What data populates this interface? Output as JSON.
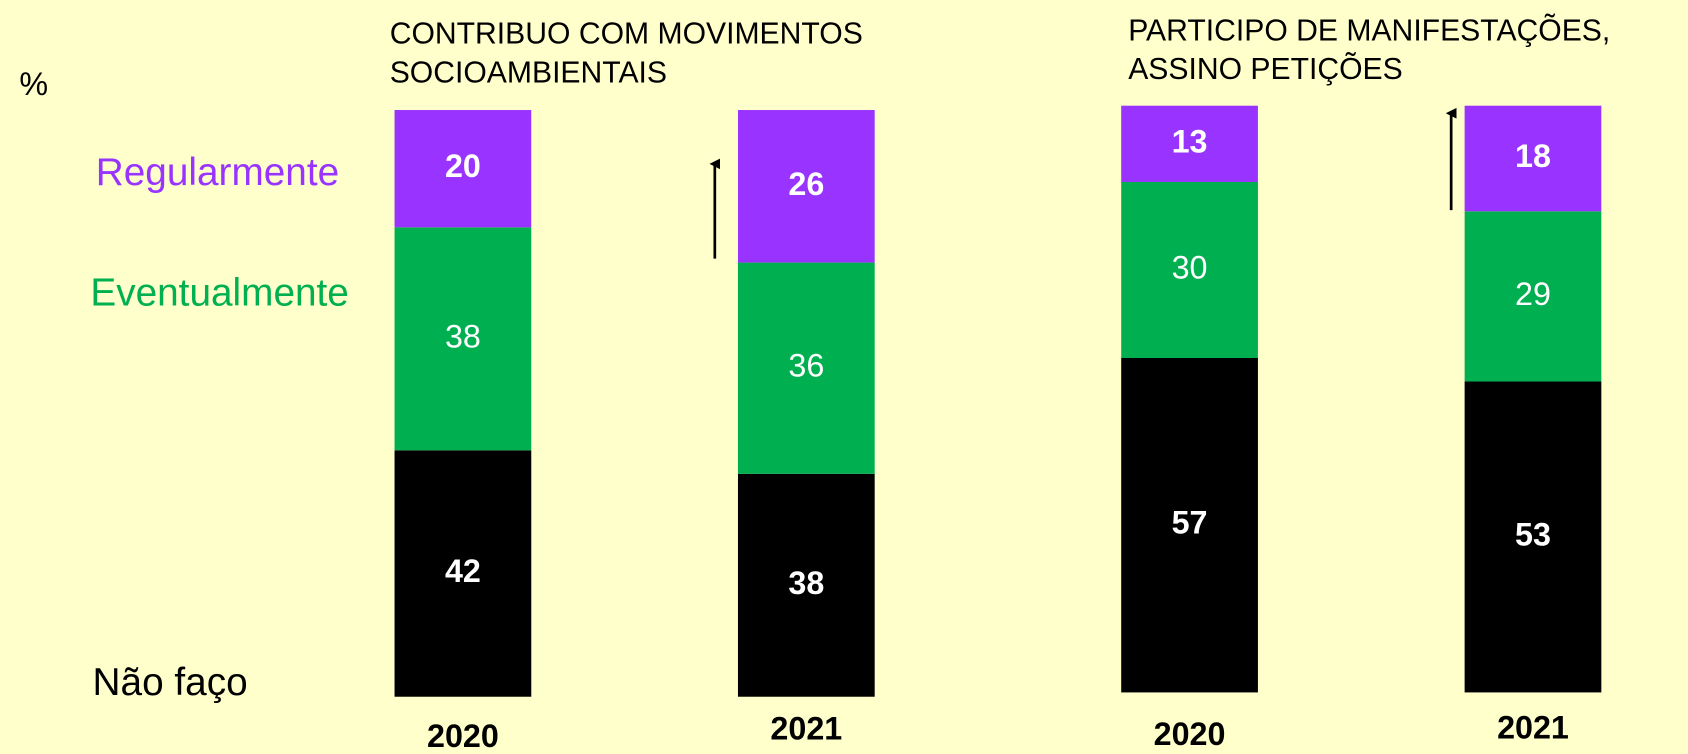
{
  "chart_data": {
    "type": "bar",
    "stacked": true,
    "ylabel": "%",
    "group_titles": [
      [
        "CONTRIBUO COM MOVIMENTOS",
        "SOCIOAMBIENTAIS"
      ],
      [
        "PARTICIPO DE MANIFESTAÇÕES,",
        "ASSINO PETIÇÕES"
      ]
    ],
    "categories": [
      "2020",
      "2021",
      "2020",
      "2021"
    ],
    "ylim": [
      0,
      100
    ],
    "series": [
      {
        "name": "Regularmente",
        "color": "#9933ff",
        "values": [
          20,
          26,
          13,
          18
        ]
      },
      {
        "name": "Eventualmente",
        "color": "#00b050",
        "values": [
          38,
          36,
          30,
          29
        ]
      },
      {
        "name": "Não faço",
        "color": "#000000",
        "values": [
          42,
          38,
          57,
          53
        ]
      }
    ]
  }
}
